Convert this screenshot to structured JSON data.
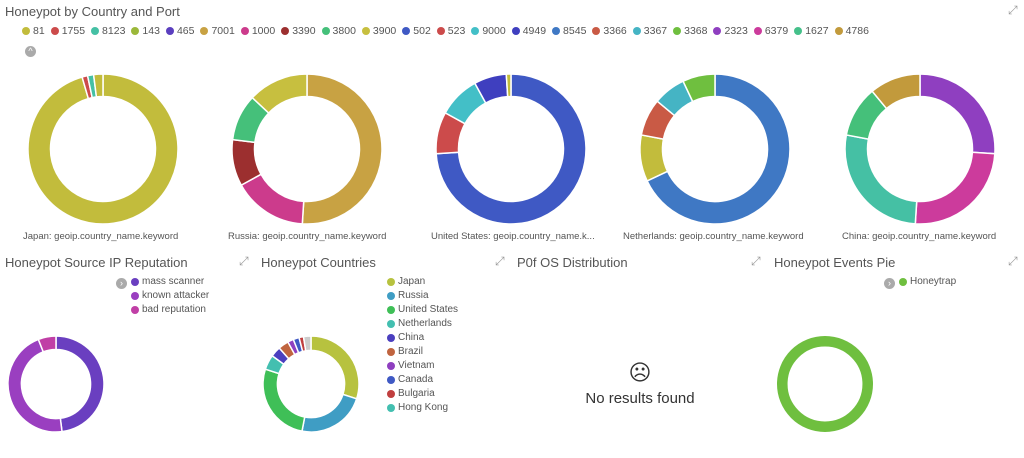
{
  "panels": {
    "country_port": {
      "title": "Honeypot by Country and Port"
    },
    "source_ip": {
      "title": "Honeypot Source IP Reputation"
    },
    "countries": {
      "title": "Honeypot Countries"
    },
    "p0f": {
      "title": "P0f OS Distribution"
    },
    "events": {
      "title": "Honeypot Events Pie"
    }
  },
  "port_legend": [
    {
      "label": "81",
      "color": "#c2bc3c"
    },
    {
      "label": "1755",
      "color": "#cc4b4b"
    },
    {
      "label": "8123",
      "color": "#45c0a4"
    },
    {
      "label": "143",
      "color": "#9bb83a"
    },
    {
      "label": "465",
      "color": "#5b3fbf"
    },
    {
      "label": "7001",
      "color": "#c8a243"
    },
    {
      "label": "1000",
      "color": "#cc3b8c"
    },
    {
      "label": "3390",
      "color": "#9c2f2f"
    },
    {
      "label": "3800",
      "color": "#45c07a"
    },
    {
      "label": "3900",
      "color": "#c7bf3f"
    },
    {
      "label": "502",
      "color": "#3f59c4"
    },
    {
      "label": "523",
      "color": "#cc4b4b"
    },
    {
      "label": "9000",
      "color": "#43bfc7"
    },
    {
      "label": "4949",
      "color": "#3f3fbf"
    },
    {
      "label": "8545",
      "color": "#3f78c4"
    },
    {
      "label": "3366",
      "color": "#c95a45"
    },
    {
      "label": "3367",
      "color": "#45b4c4"
    },
    {
      "label": "3368",
      "color": "#6fbf3f"
    },
    {
      "label": "2323",
      "color": "#8f3fc0"
    },
    {
      "label": "6379",
      "color": "#cc3b9c"
    },
    {
      "label": "1627",
      "color": "#45c08a"
    },
    {
      "label": "4786",
      "color": "#c29a3c"
    }
  ],
  "country_donuts": [
    {
      "label": "Japan: geoip.country_name.keyword",
      "slices": [
        {
          "value": 95.5,
          "color": "#c2bc3c"
        },
        {
          "value": 1.2,
          "color": "#cc4b4b"
        },
        {
          "value": 1.3,
          "color": "#45c0a4"
        },
        {
          "value": 2.0,
          "color": "#c2bc3c"
        }
      ]
    },
    {
      "label": "Russia: geoip.country_name.keyword",
      "slices": [
        {
          "value": 51,
          "color": "#c8a243"
        },
        {
          "value": 16,
          "color": "#cc3b8c"
        },
        {
          "value": 10,
          "color": "#9c2f2f"
        },
        {
          "value": 10,
          "color": "#45c07a"
        },
        {
          "value": 13,
          "color": "#c7bf3f"
        }
      ]
    },
    {
      "label": "United States: geoip.country_name.k...",
      "slices": [
        {
          "value": 74,
          "color": "#3f59c4"
        },
        {
          "value": 9,
          "color": "#cc4b4b"
        },
        {
          "value": 9,
          "color": "#43bfc7"
        },
        {
          "value": 7,
          "color": "#3f3fbf"
        },
        {
          "value": 1,
          "color": "#c2bc3c"
        }
      ]
    },
    {
      "label": "Netherlands: geoip.country_name.keyword",
      "slices": [
        {
          "value": 68,
          "color": "#3f78c4"
        },
        {
          "value": 10,
          "color": "#c2bc3c"
        },
        {
          "value": 8,
          "color": "#c95a45"
        },
        {
          "value": 7,
          "color": "#45b4c4"
        },
        {
          "value": 7,
          "color": "#6fbf3f"
        }
      ]
    },
    {
      "label": "China: geoip.country_name.keyword",
      "slices": [
        {
          "value": 26,
          "color": "#8f3fc0"
        },
        {
          "value": 25,
          "color": "#cc3b9c"
        },
        {
          "value": 27,
          "color": "#45c0a4"
        },
        {
          "value": 11,
          "color": "#45c07a"
        },
        {
          "value": 11,
          "color": "#c29a3c"
        }
      ]
    }
  ],
  "reputation_legend": [
    {
      "label": "mass scanner",
      "color": "#6a3fc0"
    },
    {
      "label": "known attacker",
      "color": "#9a3fc0"
    },
    {
      "label": "bad reputation",
      "color": "#c03fa6"
    }
  ],
  "reputation_donut": [
    {
      "value": 48,
      "color": "#6a3fc0"
    },
    {
      "value": 46,
      "color": "#9a3fc0"
    },
    {
      "value": 6,
      "color": "#c03fa6"
    }
  ],
  "countries_legend": [
    {
      "label": "Japan",
      "color": "#b7c23f"
    },
    {
      "label": "Russia",
      "color": "#3f9dc4"
    },
    {
      "label": "United States",
      "color": "#3fbf57"
    },
    {
      "label": "Netherlands",
      "color": "#43bfb0"
    },
    {
      "label": "China",
      "color": "#4b3fbf"
    },
    {
      "label": "Brazil",
      "color": "#c0643f"
    },
    {
      "label": "Vietnam",
      "color": "#8f3fc0"
    },
    {
      "label": "Canada",
      "color": "#3f59c4"
    },
    {
      "label": "Bulgaria",
      "color": "#c03f3f"
    },
    {
      "label": "Hong Kong",
      "color": "#43bfb0"
    }
  ],
  "countries_donut": [
    {
      "value": 30,
      "color": "#b7c23f"
    },
    {
      "value": 23,
      "color": "#3f9dc4"
    },
    {
      "value": 27,
      "color": "#3fbf57"
    },
    {
      "value": 5,
      "color": "#43bfb0"
    },
    {
      "value": 3.5,
      "color": "#4b3fbf"
    },
    {
      "value": 3.5,
      "color": "#c0643f"
    },
    {
      "value": 2,
      "color": "#8f3fc0"
    },
    {
      "value": 2,
      "color": "#3f59c4"
    },
    {
      "value": 1.5,
      "color": "#c03f3f"
    },
    {
      "value": 2.5,
      "color": "#cccccc"
    }
  ],
  "p0f": {
    "face": "☹",
    "message": "No results found"
  },
  "events_legend": [
    {
      "label": "Honeytrap",
      "color": "#6fbf3f"
    }
  ],
  "events_donut": [
    {
      "value": 100,
      "color": "#6fbf3f"
    }
  ],
  "icons": {
    "expand": "⤢",
    "collapse": "^",
    "legend_toggle": "›"
  }
}
